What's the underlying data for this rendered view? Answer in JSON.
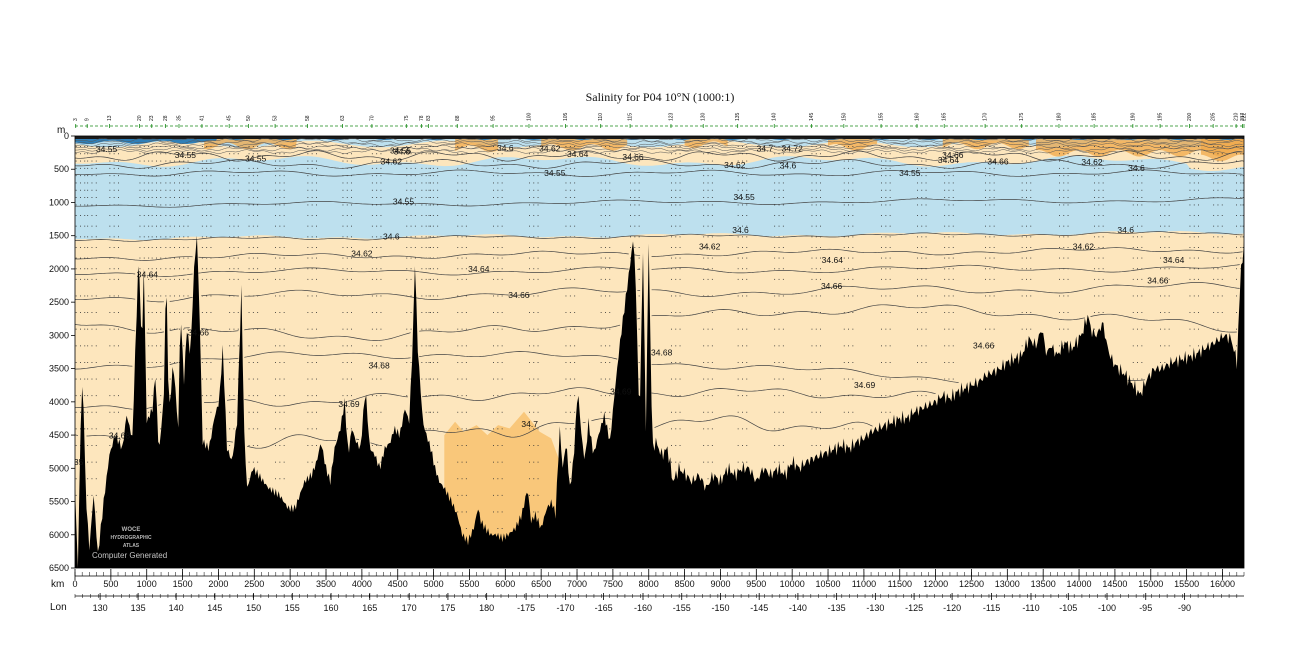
{
  "chart_data": {
    "type": "section contour plot",
    "title": "Salinity for P04 10°N (1000:1)",
    "x_unit_label": "km",
    "lon_axis_label": "Lon",
    "y_unit_label": "m",
    "x_range_km": [
      0,
      16300
    ],
    "y_range_m": [
      0,
      6500
    ],
    "km_ticks": [
      0,
      500,
      1000,
      1500,
      2000,
      2500,
      3000,
      3500,
      4000,
      4500,
      5000,
      5500,
      6000,
      6500,
      7000,
      7500,
      8000,
      8500,
      9000,
      9500,
      10000,
      10500,
      11000,
      11500,
      12000,
      12500,
      13000,
      13500,
      14000,
      14500,
      15000,
      15500,
      16000
    ],
    "depth_ticks": [
      0,
      500,
      1000,
      1500,
      2000,
      2500,
      3000,
      3500,
      4000,
      4500,
      5000,
      5500,
      6000,
      6500
    ],
    "lon_ticks": [
      {
        "label": "130",
        "km": 350
      },
      {
        "label": "135",
        "km": 880
      },
      {
        "label": "140",
        "km": 1410
      },
      {
        "label": "145",
        "km": 1950
      },
      {
        "label": "150",
        "km": 2490
      },
      {
        "label": "155",
        "km": 3030
      },
      {
        "label": "160",
        "km": 3570
      },
      {
        "label": "165",
        "km": 4110
      },
      {
        "label": "170",
        "km": 4660
      },
      {
        "label": "175",
        "km": 5200
      },
      {
        "label": "180",
        "km": 5740
      },
      {
        "label": "-175",
        "km": 6290
      },
      {
        "label": "-170",
        "km": 6840
      },
      {
        "label": "-165",
        "km": 7370
      },
      {
        "label": "-160",
        "km": 7920
      },
      {
        "label": "-155",
        "km": 8460
      },
      {
        "label": "-150",
        "km": 9000
      },
      {
        "label": "-145",
        "km": 9540
      },
      {
        "label": "-140",
        "km": 10080
      },
      {
        "label": "-135",
        "km": 10620
      },
      {
        "label": "-130",
        "km": 11160
      },
      {
        "label": "-125",
        "km": 11700
      },
      {
        "label": "-120",
        "km": 12230
      },
      {
        "label": "-115",
        "km": 12780
      },
      {
        "label": "-110",
        "km": 13330
      },
      {
        "label": "-105",
        "km": 13850
      },
      {
        "label": "-100",
        "km": 14390
      },
      {
        "label": "-95",
        "km": 14930
      },
      {
        "label": "-90",
        "km": 15470
      }
    ],
    "stations": [
      {
        "label": "3",
        "km": 10
      },
      {
        "label": "9",
        "km": 170
      },
      {
        "label": "13",
        "km": 480
      },
      {
        "label": "20",
        "km": 900
      },
      {
        "label": "23",
        "km": 1070
      },
      {
        "label": "28",
        "km": 1260
      },
      {
        "label": "35",
        "km": 1450
      },
      {
        "label": "41",
        "km": 1770
      },
      {
        "label": "45",
        "km": 2150
      },
      {
        "label": "50",
        "km": 2420
      },
      {
        "label": "53",
        "km": 2790
      },
      {
        "label": "58",
        "km": 3240
      },
      {
        "label": "63",
        "km": 3730
      },
      {
        "label": "70",
        "km": 4140
      },
      {
        "label": "75",
        "km": 4620
      },
      {
        "label": "78",
        "km": 4830
      },
      {
        "label": "83",
        "km": 4930
      },
      {
        "label": "88",
        "km": 5330
      },
      {
        "label": "95",
        "km": 5830
      },
      {
        "label": "100",
        "km": 6330
      },
      {
        "label": "105",
        "km": 6840
      },
      {
        "label": "110",
        "km": 7330
      },
      {
        "label": "115",
        "km": 7740
      },
      {
        "label": "123",
        "km": 8310
      },
      {
        "label": "130",
        "km": 8760
      },
      {
        "label": "135",
        "km": 9240
      },
      {
        "label": "140",
        "km": 9750
      },
      {
        "label": "145",
        "km": 10270
      },
      {
        "label": "150",
        "km": 10720
      },
      {
        "label": "155",
        "km": 11240
      },
      {
        "label": "160",
        "km": 11740
      },
      {
        "label": "165",
        "km": 12120
      },
      {
        "label": "170",
        "km": 12690
      },
      {
        "label": "175",
        "km": 13200
      },
      {
        "label": "180",
        "km": 13720
      },
      {
        "label": "185",
        "km": 14210
      },
      {
        "label": "190",
        "km": 14750
      },
      {
        "label": "195",
        "km": 15130
      },
      {
        "label": "200",
        "km": 15540
      },
      {
        "label": "205",
        "km": 15870
      },
      {
        "label": "210",
        "km": 16190
      },
      {
        "label": "217",
        "km": 16280
      },
      {
        "label": "222",
        "km": 16300
      }
    ],
    "fill_colors": {
      "low_salinity_blue": "#bde0ee",
      "mid_salinity_cream": "#fde6bd",
      "high_salinity_orange": "#f9c77a",
      "surface_orange": "#f0a84a",
      "surface_dark_blue": "#2f7fb8",
      "bathymetry": "#000000"
    },
    "contour_labels": [
      {
        "text": "34.55",
        "km": 440,
        "m": 240
      },
      {
        "text": "34.55",
        "km": 1540,
        "m": 330
      },
      {
        "text": "34.55",
        "km": 2520,
        "m": 380
      },
      {
        "text": "34.55",
        "km": 4540,
        "m": 260
      },
      {
        "text": "34.62",
        "km": 4410,
        "m": 430
      },
      {
        "text": "34.6",
        "km": 4560,
        "m": 275
      },
      {
        "text": "34.6",
        "km": 6000,
        "m": 225
      },
      {
        "text": "34.62",
        "km": 6620,
        "m": 235
      },
      {
        "text": "34.64",
        "km": 7010,
        "m": 315
      },
      {
        "text": "34.66",
        "km": 7780,
        "m": 360
      },
      {
        "text": "34.62",
        "km": 9200,
        "m": 480
      },
      {
        "text": "34.6",
        "km": 9940,
        "m": 490
      },
      {
        "text": "34.7",
        "km": 9620,
        "m": 230
      },
      {
        "text": "34.72",
        "km": 10000,
        "m": 230
      },
      {
        "text": "34.66",
        "km": 12240,
        "m": 330
      },
      {
        "text": "34.64",
        "km": 12180,
        "m": 410
      },
      {
        "text": "34.66",
        "km": 12870,
        "m": 430
      },
      {
        "text": "34.62",
        "km": 14180,
        "m": 440
      },
      {
        "text": "34.6",
        "km": 14800,
        "m": 530
      },
      {
        "text": "34.55",
        "km": 6690,
        "m": 600
      },
      {
        "text": "34.55",
        "km": 11640,
        "m": 600
      },
      {
        "text": "34.55",
        "km": 4580,
        "m": 1030
      },
      {
        "text": "34.55",
        "km": 9330,
        "m": 960
      },
      {
        "text": "34.6",
        "km": 4410,
        "m": 1560
      },
      {
        "text": "34.6",
        "km": 9280,
        "m": 1460
      },
      {
        "text": "34.6",
        "km": 14650,
        "m": 1460
      },
      {
        "text": "34.62",
        "km": 4000,
        "m": 1810
      },
      {
        "text": "34.62",
        "km": 8850,
        "m": 1710
      },
      {
        "text": "34.62",
        "km": 14060,
        "m": 1710
      },
      {
        "text": "34.64",
        "km": 1010,
        "m": 2130
      },
      {
        "text": "34.64",
        "km": 5630,
        "m": 2050
      },
      {
        "text": "34.64",
        "km": 10560,
        "m": 1910
      },
      {
        "text": "34.64",
        "km": 15320,
        "m": 1910
      },
      {
        "text": "34.66",
        "km": 6190,
        "m": 2440
      },
      {
        "text": "34.66",
        "km": 10550,
        "m": 2300
      },
      {
        "text": "34.66",
        "km": 15100,
        "m": 2220
      },
      {
        "text": "34.66",
        "km": 1720,
        "m": 3000
      },
      {
        "text": "34.66",
        "km": 12670,
        "m": 3200
      },
      {
        "text": "34.68",
        "km": 4240,
        "m": 3500
      },
      {
        "text": "34.68",
        "km": 8180,
        "m": 3300
      },
      {
        "text": "34.69",
        "km": 3820,
        "m": 4080
      },
      {
        "text": "34.69",
        "km": 7610,
        "m": 3890
      },
      {
        "text": "34.69",
        "km": 11010,
        "m": 3790
      },
      {
        "text": "34.7",
        "km": 6340,
        "m": 4380
      },
      {
        "text": "34.68",
        "km": 620,
        "m": 4550
      },
      {
        "text": "35",
        "km": 50,
        "m": 4950
      }
    ],
    "watermark": {
      "line1": "WOCE",
      "line2": "HYDROGRAPHIC",
      "line3": "ATLAS",
      "caption": "Computer Generated"
    }
  }
}
